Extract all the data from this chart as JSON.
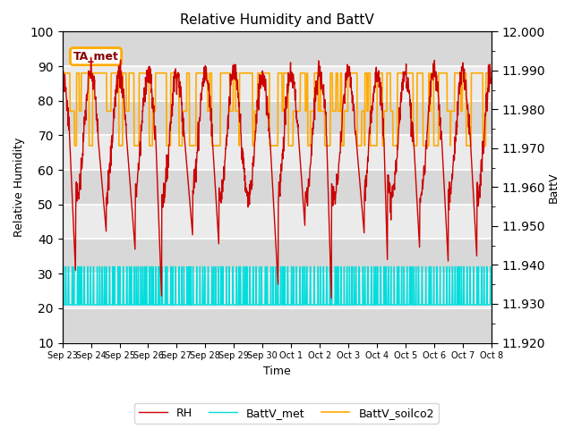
{
  "title": "Relative Humidity and BattV",
  "xlabel": "Time",
  "ylabel_left": "Relative Humidity",
  "ylabel_right": "BattV",
  "ylim_left": [
    10,
    100
  ],
  "ylim_right": [
    11.92,
    12.0
  ],
  "x_tick_labels": [
    "Sep 23",
    "Sep 24",
    "Sep 25",
    "Sep 26",
    "Sep 27",
    "Sep 28",
    "Sep 29",
    "Sep 30",
    "Oct 1",
    "Oct 2",
    "Oct 3",
    "Oct 4",
    "Oct 5",
    "Oct 6",
    "Oct 7",
    "Oct 8"
  ],
  "rh_color": "#cc0000",
  "batt_met_color": "#00dddd",
  "batt_soilco2_color": "#ffaa00",
  "annotation_text": "TA_met",
  "annotation_color": "#ffaa00",
  "plot_bg_light": "#ebebeb",
  "plot_bg_dark": "#d8d8d8",
  "grid_color": "white"
}
